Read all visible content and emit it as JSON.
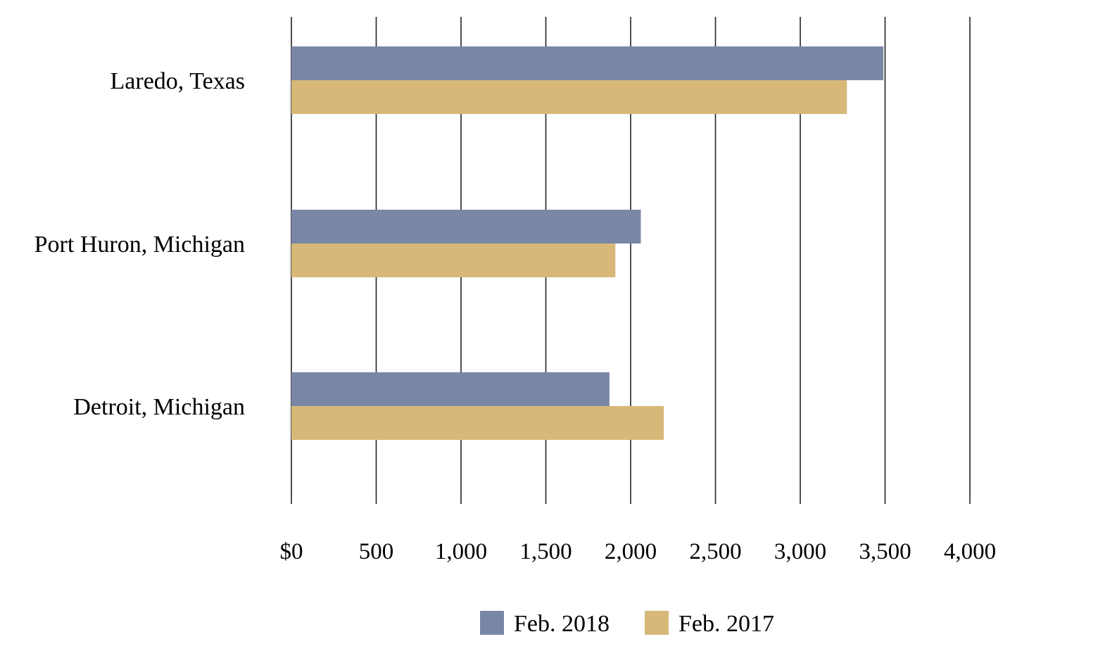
{
  "chart_data": {
    "type": "bar",
    "orientation": "horizontal",
    "title": "",
    "xlabel": "",
    "ylabel": "",
    "categories": [
      "Laredo, Texas",
      "Port Huron, Michigan",
      "Detroit, Michigan"
    ],
    "series": [
      {
        "name": "Feb. 2018",
        "color": "#7986a6",
        "values": [
          3490,
          2060,
          1875
        ]
      },
      {
        "name": "Feb. 2017",
        "color": "#d7b878",
        "values": [
          3275,
          1910,
          2195
        ]
      }
    ],
    "xlim": [
      0,
      4000
    ],
    "xticks": [
      0,
      500,
      1000,
      1500,
      2000,
      2500,
      3000,
      3500,
      4000
    ],
    "xtick_labels": [
      "$0",
      "500",
      "1,000",
      "1,500",
      "2,000",
      "2,500",
      "3,000",
      "3,500",
      "4,000"
    ],
    "grid": true,
    "legend_position": "bottom-center"
  }
}
